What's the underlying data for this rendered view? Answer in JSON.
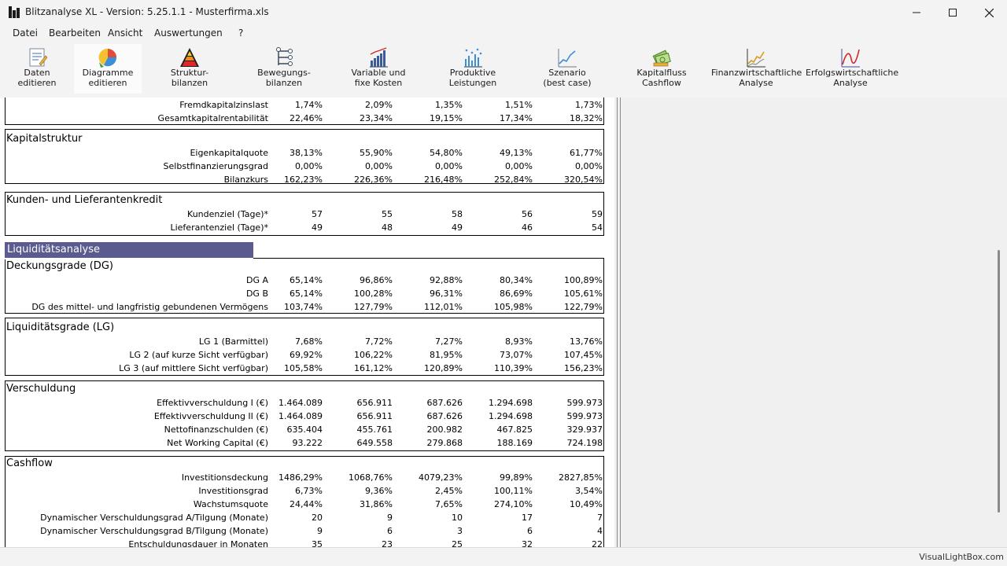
{
  "window": {
    "title": "Blitzanalyse XL - Version: 5.25.1.1 - Musterfirma.xls"
  },
  "menu": [
    "Datei",
    "Bearbeiten",
    "Ansicht",
    "Auswertungen",
    "?"
  ],
  "toolbar": [
    {
      "label": "Daten\neditieren",
      "icon": "data-edit-icon"
    },
    {
      "label": "Diagramme\neditieren",
      "icon": "diagram-edit-icon"
    },
    {
      "label": "Struktur-\nbilanzen",
      "icon": "pyramid-icon"
    },
    {
      "label": "Bewegungs-\nbilanzen",
      "icon": "tree-icon"
    },
    {
      "label": "Variable und\nfixe Kosten",
      "icon": "bar-chart-icon"
    },
    {
      "label": "Produktive\nLeistungen",
      "icon": "scatter-chart-icon"
    },
    {
      "label": "Szenario\n(best case)",
      "icon": "line-chart-icon"
    },
    {
      "label": "Kapitalfluss\nCashflow",
      "icon": "money-icon"
    },
    {
      "label": "Finanzwirtschaftliche\nAnalyse",
      "icon": "finance-chart-icon"
    },
    {
      "label": "Erfolgswirtschaftliche\nAnalyse",
      "icon": "success-chart-icon"
    }
  ],
  "sheet": {
    "top_rows": [
      {
        "label": "Fremdkapitalzinslast",
        "values": [
          "1,74%",
          "2,09%",
          "1,35%",
          "1,51%",
          "1,73%"
        ]
      },
      {
        "label": "Gesamtkapitalrentabilität",
        "values": [
          "22,46%",
          "23,34%",
          "19,15%",
          "17,34%",
          "18,32%"
        ]
      }
    ],
    "kapitalstruktur": {
      "title": "Kapitalstruktur",
      "rows": [
        {
          "label": "Eigenkapitalquote",
          "values": [
            "38,13%",
            "55,90%",
            "54,80%",
            "49,13%",
            "61,77%"
          ]
        },
        {
          "label": "Selbstfinanzierungsgrad",
          "values": [
            "0,00%",
            "0,00%",
            "0,00%",
            "0,00%",
            "0,00%"
          ]
        },
        {
          "label": "Bilanzkurs",
          "values": [
            "162,23%",
            "226,36%",
            "216,48%",
            "252,84%",
            "320,54%"
          ]
        }
      ]
    },
    "kredit": {
      "title": "Kunden- und Lieferantenkredit",
      "rows": [
        {
          "label": "Kundenziel (Tage)*",
          "values": [
            "57",
            "55",
            "58",
            "56",
            "59"
          ]
        },
        {
          "label": "Lieferantenziel (Tage)*",
          "values": [
            "49",
            "48",
            "49",
            "46",
            "54"
          ]
        }
      ]
    },
    "liquiditaet_header": "Liquiditätsanalyse",
    "deckungsgrade": {
      "title": "Deckungsgrade (DG)",
      "rows": [
        {
          "label": "DG A",
          "values": [
            "65,14%",
            "96,86%",
            "92,88%",
            "80,34%",
            "100,89%"
          ]
        },
        {
          "label": "DG B",
          "values": [
            "65,14%",
            "100,28%",
            "96,31%",
            "86,69%",
            "105,61%"
          ]
        },
        {
          "label": "DG des mittel- und langfristig gebundenen Vermögens",
          "values": [
            "103,74%",
            "127,79%",
            "112,01%",
            "105,98%",
            "122,79%"
          ]
        }
      ]
    },
    "liquiditaetsgrade": {
      "title": "Liquiditätsgrade (LG)",
      "rows": [
        {
          "label": "LG 1 (Barmittel)",
          "values": [
            "7,68%",
            "7,72%",
            "7,27%",
            "8,93%",
            "13,76%"
          ]
        },
        {
          "label": "LG 2 (auf kurze Sicht verfügbar)",
          "values": [
            "69,92%",
            "106,22%",
            "81,95%",
            "73,07%",
            "107,45%"
          ]
        },
        {
          "label": "LG 3 (auf mittlere Sicht verfügbar)",
          "values": [
            "105,58%",
            "161,12%",
            "120,89%",
            "110,39%",
            "156,23%"
          ]
        }
      ]
    },
    "verschuldung": {
      "title": "Verschuldung",
      "rows": [
        {
          "label": "Effektivverschuldung I (€)",
          "values": [
            "1.464.089",
            "656.911",
            "687.626",
            "1.294.698",
            "599.973"
          ]
        },
        {
          "label": "Effektivverschuldung II (€)",
          "values": [
            "1.464.089",
            "656.911",
            "687.626",
            "1.294.698",
            "599.973"
          ]
        },
        {
          "label": "Nettofinanzschulden (€)",
          "values": [
            "635.404",
            "455.761",
            "200.982",
            "467.825",
            "329.937"
          ]
        },
        {
          "label": "Net Working Capital (€)",
          "values": [
            "93.222",
            "649.558",
            "279.868",
            "188.169",
            "724.198"
          ]
        }
      ]
    },
    "cashflow": {
      "title": "Cashflow",
      "rows": [
        {
          "label": "Investitionsdeckung",
          "values": [
            "1486,29%",
            "1068,76%",
            "4079,23%",
            "99,89%",
            "2827,85%"
          ]
        },
        {
          "label": "Investitionsgrad",
          "values": [
            "6,73%",
            "9,36%",
            "2,45%",
            "100,11%",
            "3,54%"
          ]
        },
        {
          "label": "Wachstumsquote",
          "values": [
            "24,44%",
            "31,86%",
            "7,65%",
            "274,10%",
            "10,49%"
          ]
        },
        {
          "label": "Dynamischer Verschuldungsgrad A/Tilgung (Monate)",
          "values": [
            "20",
            "9",
            "10",
            "17",
            "7"
          ]
        },
        {
          "label": "Dynamischer Verschuldungsgrad B/Tilgung (Monate)",
          "values": [
            "9",
            "6",
            "3",
            "6",
            "4"
          ]
        },
        {
          "label": "Entschuldungsdauer in Monaten",
          "values": [
            "35",
            "23",
            "25",
            "32",
            "22"
          ]
        }
      ]
    }
  },
  "statusbar": {
    "text": "VisualLightBox.com"
  },
  "colors": {
    "section_header": "#5b5b8f"
  }
}
